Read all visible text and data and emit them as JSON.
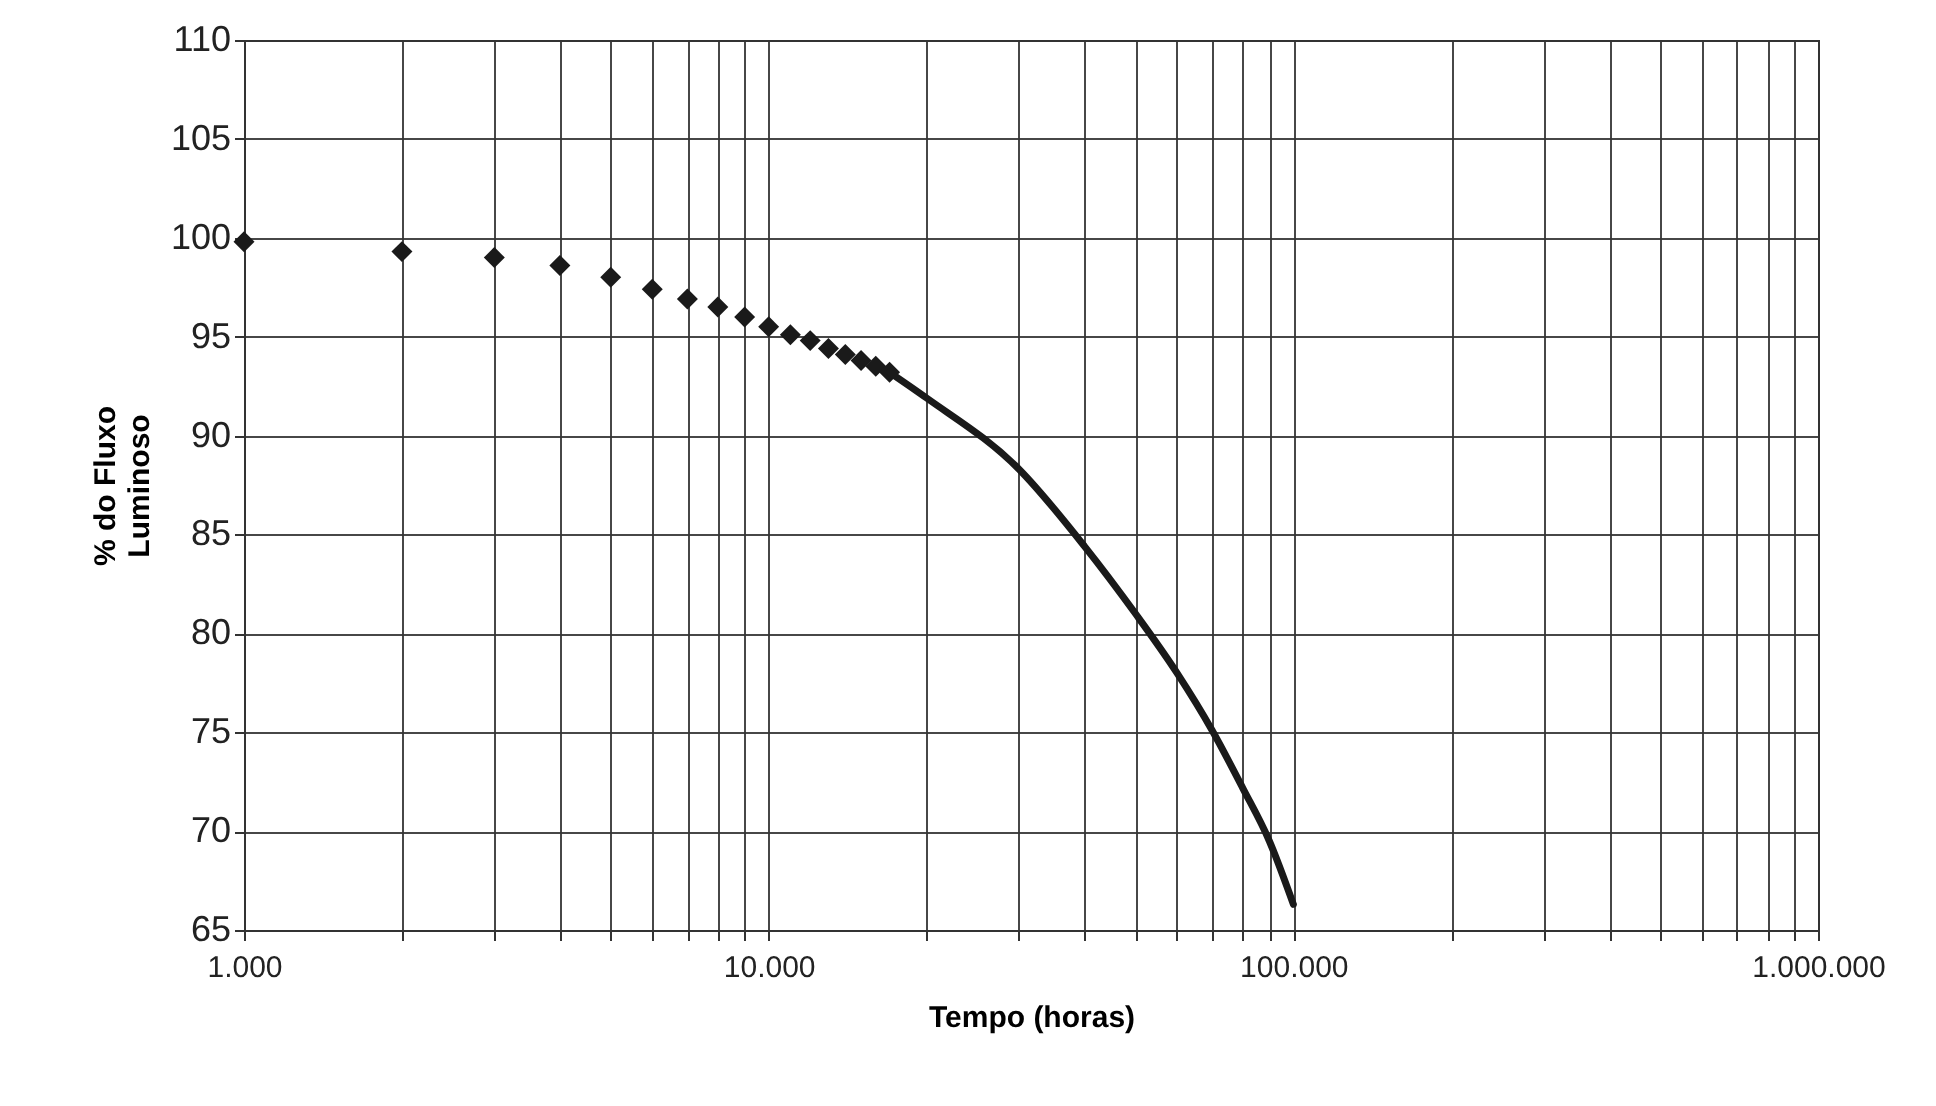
{
  "chart_data": {
    "type": "scatter",
    "xlabel": "Tempo (horas)",
    "ylabel": "% do Fluxo Luminoso",
    "log": "x",
    "grid": true,
    "marker": "diamond",
    "xlim": [
      1000,
      1000000
    ],
    "ylim": [
      65,
      110
    ],
    "xticks": [
      {
        "value": 1000,
        "label": "1.000"
      },
      {
        "value": 2000,
        "label": null
      },
      {
        "value": 3000,
        "label": null
      },
      {
        "value": 4000,
        "label": null
      },
      {
        "value": 5000,
        "label": null
      },
      {
        "value": 6000,
        "label": null
      },
      {
        "value": 7000,
        "label": null
      },
      {
        "value": 8000,
        "label": null
      },
      {
        "value": 9000,
        "label": null
      },
      {
        "value": 10000,
        "label": "10.000"
      },
      {
        "value": 20000,
        "label": null
      },
      {
        "value": 30000,
        "label": null
      },
      {
        "value": 40000,
        "label": null
      },
      {
        "value": 50000,
        "label": null
      },
      {
        "value": 60000,
        "label": null
      },
      {
        "value": 70000,
        "label": null
      },
      {
        "value": 80000,
        "label": null
      },
      {
        "value": 90000,
        "label": null
      },
      {
        "value": 100000,
        "label": "100.000"
      },
      {
        "value": 200000,
        "label": null
      },
      {
        "value": 300000,
        "label": null
      },
      {
        "value": 400000,
        "label": null
      },
      {
        "value": 500000,
        "label": null
      },
      {
        "value": 600000,
        "label": null
      },
      {
        "value": 700000,
        "label": null
      },
      {
        "value": 800000,
        "label": null
      },
      {
        "value": 900000,
        "label": null
      },
      {
        "value": 1000000,
        "label": "1.000.000"
      }
    ],
    "yticks": [
      65,
      70,
      75,
      80,
      85,
      90,
      95,
      100,
      105,
      110
    ],
    "series": [
      {
        "color": "#1a1a1a",
        "x": [
          1000,
          2000,
          3000,
          4000,
          5000,
          6000,
          7000,
          8000,
          9000,
          10000,
          11000,
          12000,
          13000,
          14000,
          15000,
          16000,
          17000
        ],
        "values": [
          99.8,
          99.3,
          99.0,
          98.6,
          98.0,
          97.4,
          96.9,
          96.5,
          96.0,
          95.5,
          95.1,
          94.8,
          94.4,
          94.1,
          93.8,
          93.5,
          93.2
        ]
      },
      {
        "type": "line",
        "color": "#1a1a1a",
        "marker": "none",
        "x": [
          17000,
          20000,
          30000,
          40000,
          50000,
          60000,
          70000,
          80000,
          90000,
          100000
        ],
        "values": [
          93.2,
          91.9,
          88.3,
          84.4,
          81.0,
          78.0,
          75.1,
          72.2,
          69.5,
          66.3
        ]
      }
    ]
  }
}
